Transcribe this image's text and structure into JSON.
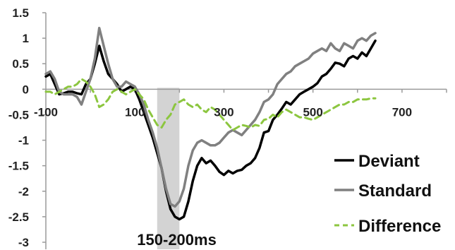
{
  "chart_data": {
    "type": "line",
    "xlim": [
      -100,
      800
    ],
    "ylim": [
      -3,
      1.5
    ],
    "x_ticks": [
      -100,
      100,
      300,
      500,
      700
    ],
    "x_tick_labels": [
      "-100",
      "100",
      "300",
      "500",
      "700"
    ],
    "y_ticks": [
      1.5,
      1,
      0.5,
      0,
      -0.5,
      -1,
      -1.5,
      -2,
      -2.5,
      -3
    ],
    "y_tick_labels": [
      "1.5",
      "1",
      "0.5",
      "0",
      "-0.5",
      "-1",
      "-1.5",
      "-2",
      "-2.5",
      "-3"
    ],
    "x_axis_at_y": 0,
    "grid": false,
    "legend_position": "bottom-right",
    "highlight": {
      "x_range": [
        150,
        200
      ],
      "label": "150-200ms",
      "color": "#d3d3d3"
    },
    "series": [
      {
        "name": "Deviant",
        "color": "#000000",
        "dash": "solid",
        "points": [
          [
            -100,
            0.25
          ],
          [
            -90,
            0.3
          ],
          [
            -80,
            0.1
          ],
          [
            -70,
            -0.1
          ],
          [
            -60,
            -0.08
          ],
          [
            -50,
            -0.05
          ],
          [
            -40,
            -0.05
          ],
          [
            -30,
            -0.08
          ],
          [
            -20,
            -0.1
          ],
          [
            -10,
            0.1
          ],
          [
            0,
            0.2
          ],
          [
            10,
            0.5
          ],
          [
            20,
            0.85
          ],
          [
            30,
            0.55
          ],
          [
            40,
            0.3
          ],
          [
            50,
            0.2
          ],
          [
            60,
            0.1
          ],
          [
            70,
            -0.05
          ],
          [
            80,
            0.0
          ],
          [
            90,
            0.05
          ],
          [
            100,
            0.0
          ],
          [
            110,
            -0.2
          ],
          [
            120,
            -0.45
          ],
          [
            130,
            -0.7
          ],
          [
            140,
            -0.95
          ],
          [
            150,
            -1.25
          ],
          [
            160,
            -1.55
          ],
          [
            170,
            -2.0
          ],
          [
            180,
            -2.35
          ],
          [
            190,
            -2.5
          ],
          [
            200,
            -2.55
          ],
          [
            210,
            -2.5
          ],
          [
            220,
            -2.2
          ],
          [
            230,
            -1.8
          ],
          [
            240,
            -1.5
          ],
          [
            250,
            -1.35
          ],
          [
            260,
            -1.45
          ],
          [
            270,
            -1.4
          ],
          [
            280,
            -1.5
          ],
          [
            290,
            -1.62
          ],
          [
            300,
            -1.68
          ],
          [
            310,
            -1.6
          ],
          [
            320,
            -1.65
          ],
          [
            330,
            -1.6
          ],
          [
            340,
            -1.58
          ],
          [
            350,
            -1.5
          ],
          [
            360,
            -1.45
          ],
          [
            370,
            -1.35
          ],
          [
            380,
            -1.15
          ],
          [
            390,
            -0.85
          ],
          [
            400,
            -0.82
          ],
          [
            410,
            -0.6
          ],
          [
            420,
            -0.5
          ],
          [
            430,
            -0.38
          ],
          [
            440,
            -0.25
          ],
          [
            450,
            -0.3
          ],
          [
            460,
            -0.2
          ],
          [
            470,
            -0.1
          ],
          [
            480,
            -0.05
          ],
          [
            490,
            0.0
          ],
          [
            500,
            0.05
          ],
          [
            510,
            0.12
          ],
          [
            520,
            0.25
          ],
          [
            530,
            0.3
          ],
          [
            540,
            0.4
          ],
          [
            550,
            0.52
          ],
          [
            560,
            0.5
          ],
          [
            570,
            0.45
          ],
          [
            580,
            0.6
          ],
          [
            590,
            0.65
          ],
          [
            600,
            0.6
          ],
          [
            610,
            0.72
          ],
          [
            620,
            0.65
          ],
          [
            630,
            0.8
          ],
          [
            640,
            0.95
          ]
        ]
      },
      {
        "name": "Standard",
        "color": "#808080",
        "dash": "solid",
        "points": [
          [
            -100,
            0.3
          ],
          [
            -90,
            0.35
          ],
          [
            -80,
            0.2
          ],
          [
            -70,
            -0.05
          ],
          [
            -60,
            -0.1
          ],
          [
            -50,
            -0.1
          ],
          [
            -40,
            -0.1
          ],
          [
            -30,
            -0.15
          ],
          [
            -20,
            -0.3
          ],
          [
            -10,
            -0.05
          ],
          [
            0,
            0.2
          ],
          [
            10,
            0.6
          ],
          [
            20,
            1.2
          ],
          [
            30,
            0.85
          ],
          [
            40,
            0.5
          ],
          [
            50,
            0.2
          ],
          [
            60,
            0.05
          ],
          [
            70,
            0.05
          ],
          [
            80,
            0.15
          ],
          [
            90,
            0.1
          ],
          [
            100,
            0.05
          ],
          [
            110,
            -0.1
          ],
          [
            120,
            -0.3
          ],
          [
            130,
            -0.6
          ],
          [
            140,
            -0.85
          ],
          [
            150,
            -1.15
          ],
          [
            160,
            -1.55
          ],
          [
            170,
            -1.95
          ],
          [
            180,
            -2.25
          ],
          [
            190,
            -2.3
          ],
          [
            200,
            -2.2
          ],
          [
            210,
            -1.95
          ],
          [
            220,
            -1.5
          ],
          [
            230,
            -1.2
          ],
          [
            240,
            -1.05
          ],
          [
            250,
            -1.0
          ],
          [
            260,
            -1.05
          ],
          [
            270,
            -1.1
          ],
          [
            280,
            -1.1
          ],
          [
            290,
            -1.05
          ],
          [
            300,
            -0.95
          ],
          [
            310,
            -0.85
          ],
          [
            320,
            -0.8
          ],
          [
            330,
            -0.85
          ],
          [
            340,
            -0.9
          ],
          [
            350,
            -0.8
          ],
          [
            360,
            -0.7
          ],
          [
            370,
            -0.6
          ],
          [
            380,
            -0.45
          ],
          [
            390,
            -0.25
          ],
          [
            400,
            -0.2
          ],
          [
            410,
            -0.1
          ],
          [
            420,
            0.1
          ],
          [
            430,
            0.2
          ],
          [
            440,
            0.3
          ],
          [
            450,
            0.35
          ],
          [
            460,
            0.45
          ],
          [
            470,
            0.5
          ],
          [
            480,
            0.55
          ],
          [
            490,
            0.6
          ],
          [
            500,
            0.7
          ],
          [
            510,
            0.75
          ],
          [
            520,
            0.8
          ],
          [
            530,
            0.75
          ],
          [
            540,
            0.9
          ],
          [
            550,
            0.8
          ],
          [
            560,
            0.75
          ],
          [
            570,
            0.9
          ],
          [
            580,
            0.85
          ],
          [
            590,
            0.8
          ],
          [
            600,
            0.95
          ],
          [
            610,
            1.0
          ],
          [
            620,
            0.95
          ],
          [
            630,
            1.05
          ],
          [
            640,
            1.1
          ]
        ]
      },
      {
        "name": "Difference",
        "color": "#8cc63f",
        "dash": "dashed",
        "points": [
          [
            -100,
            -0.05
          ],
          [
            -90,
            -0.05
          ],
          [
            -80,
            -0.1
          ],
          [
            -70,
            -0.05
          ],
          [
            -60,
            0.0
          ],
          [
            -50,
            0.05
          ],
          [
            -40,
            0.05
          ],
          [
            -30,
            0.1
          ],
          [
            -20,
            0.2
          ],
          [
            -10,
            0.15
          ],
          [
            0,
            0.05
          ],
          [
            10,
            -0.1
          ],
          [
            20,
            -0.35
          ],
          [
            30,
            -0.3
          ],
          [
            40,
            -0.2
          ],
          [
            50,
            -0.05
          ],
          [
            60,
            0.0
          ],
          [
            70,
            -0.05
          ],
          [
            80,
            -0.1
          ],
          [
            90,
            -0.05
          ],
          [
            100,
            0.0
          ],
          [
            110,
            -0.1
          ],
          [
            120,
            -0.2
          ],
          [
            130,
            -0.4
          ],
          [
            140,
            -0.55
          ],
          [
            150,
            -0.7
          ],
          [
            160,
            -0.75
          ],
          [
            170,
            -0.6
          ],
          [
            180,
            -0.5
          ],
          [
            190,
            -0.3
          ],
          [
            200,
            -0.25
          ],
          [
            210,
            -0.2
          ],
          [
            220,
            -0.3
          ],
          [
            230,
            -0.35
          ],
          [
            240,
            -0.3
          ],
          [
            250,
            -0.4
          ],
          [
            260,
            -0.45
          ],
          [
            270,
            -0.35
          ],
          [
            280,
            -0.4
          ],
          [
            290,
            -0.5
          ],
          [
            300,
            -0.6
          ],
          [
            310,
            -0.7
          ],
          [
            320,
            -0.8
          ],
          [
            330,
            -0.75
          ],
          [
            340,
            -0.7
          ],
          [
            350,
            -0.72
          ],
          [
            360,
            -0.75
          ],
          [
            370,
            -0.7
          ],
          [
            380,
            -0.72
          ],
          [
            390,
            -0.6
          ],
          [
            400,
            -0.58
          ],
          [
            410,
            -0.5
          ],
          [
            420,
            -0.55
          ],
          [
            430,
            -0.45
          ],
          [
            440,
            -0.4
          ],
          [
            450,
            -0.45
          ],
          [
            460,
            -0.5
          ],
          [
            470,
            -0.55
          ],
          [
            480,
            -0.55
          ],
          [
            490,
            -0.58
          ],
          [
            500,
            -0.6
          ],
          [
            510,
            -0.55
          ],
          [
            520,
            -0.5
          ],
          [
            530,
            -0.45
          ],
          [
            540,
            -0.4
          ],
          [
            550,
            -0.35
          ],
          [
            560,
            -0.3
          ],
          [
            570,
            -0.3
          ],
          [
            580,
            -0.25
          ],
          [
            590,
            -0.25
          ],
          [
            600,
            -0.2
          ],
          [
            610,
            -0.2
          ],
          [
            620,
            -0.2
          ],
          [
            630,
            -0.18
          ],
          [
            640,
            -0.18
          ]
        ]
      }
    ]
  }
}
